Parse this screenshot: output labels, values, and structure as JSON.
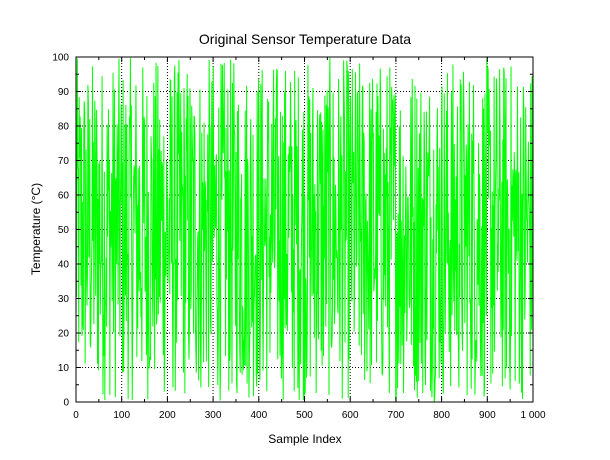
{
  "chart_data": {
    "type": "line",
    "title": "Original Sensor Temperature Data",
    "xlabel": "Sample Index",
    "ylabel": "Temperature (°C)",
    "xlim": [
      0,
      1000
    ],
    "ylim": [
      0,
      100
    ],
    "x_ticks": [
      0,
      100,
      200,
      300,
      400,
      500,
      600,
      700,
      800,
      900,
      1000
    ],
    "x_tick_labels": [
      "0",
      "100",
      "200",
      "300",
      "400",
      "500",
      "600",
      "700",
      "800",
      "900",
      "1 000"
    ],
    "y_ticks": [
      0,
      10,
      20,
      30,
      40,
      50,
      60,
      70,
      80,
      90,
      100
    ],
    "y_tick_labels": [
      "0",
      "10",
      "20",
      "30",
      "40",
      "50",
      "60",
      "70",
      "80",
      "90",
      "100"
    ],
    "grid": true,
    "series": [
      {
        "color": "#00ff00",
        "x_start": 0,
        "x_end": 1000,
        "n_points": 1000,
        "distribution": "uniform random",
        "y_min": 0,
        "y_max": 100
      }
    ]
  }
}
